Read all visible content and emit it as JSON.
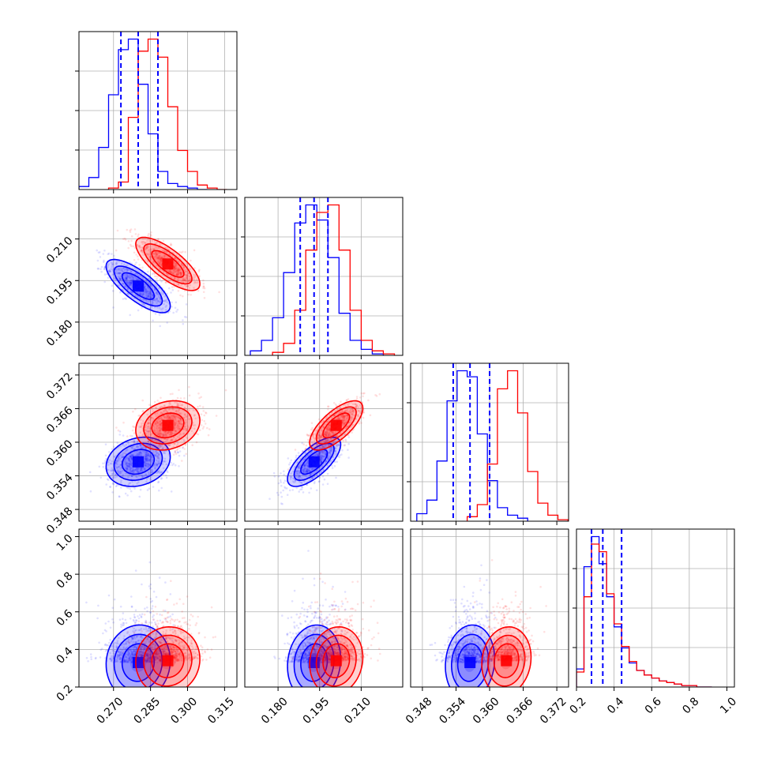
{
  "colors": {
    "blue": "#0000ff",
    "red": "#ff0000",
    "grid": "#b0b0b0"
  },
  "chart_data": {
    "type": "corner",
    "grid": true,
    "quantile_lines_series": "blue",
    "params": [
      {
        "range": [
          0.256,
          0.32
        ],
        "ticks": [
          "0.270",
          "0.285",
          "0.300",
          "0.315"
        ],
        "tick_values": [
          0.27,
          0.285,
          0.3,
          0.315
        ]
      },
      {
        "range": [
          0.168,
          0.225
        ],
        "ticks": [
          "0.180",
          "0.195",
          "0.210"
        ],
        "tick_values": [
          0.18,
          0.195,
          0.21
        ]
      },
      {
        "range": [
          0.3459,
          0.3741
        ],
        "ticks": [
          "0.348",
          "0.354",
          "0.360",
          "0.366",
          "0.372"
        ],
        "tick_values": [
          0.348,
          0.354,
          0.36,
          0.366,
          0.372
        ]
      },
      {
        "range": [
          0.2,
          1.04
        ],
        "ticks": [
          "0.2",
          "0.4",
          "0.6",
          "0.8",
          "1.0"
        ],
        "tick_values": [
          0.2,
          0.4,
          0.6,
          0.8,
          1.0
        ]
      }
    ],
    "series": [
      {
        "color": "blue",
        "mean": [
          0.28,
          0.193,
          0.3565,
          0.33
        ],
        "std": [
          0.0065,
          0.0048,
          0.0022,
          0.1
        ],
        "quantiles": [
          [
            0.273,
            0.28,
            0.288
          ],
          [
            0.188,
            0.193,
            0.198
          ],
          [
            0.3535,
            0.3565,
            0.36
          ],
          [
            0.28,
            0.34,
            0.44
          ]
        ],
        "corr": [
          [
            1,
            -0.75,
            0.2,
            0.05
          ],
          [
            -0.75,
            1,
            0.7,
            0.1
          ],
          [
            0.2,
            0.7,
            1,
            0.1
          ],
          [
            0.05,
            0.1,
            0.1,
            1
          ]
        ],
        "hist_bins": [
          [
            0.256,
            0.26,
            0.264,
            0.268,
            0.272,
            0.276,
            0.28,
            0.284,
            0.288,
            0.292,
            0.296,
            0.3,
            0.304,
            0.308
          ],
          [
            0.17,
            0.174,
            0.178,
            0.182,
            0.186,
            0.19,
            0.194,
            0.198,
            0.202,
            0.206,
            0.21,
            0.214,
            0.218
          ],
          [
            0.347,
            0.3488,
            0.3506,
            0.3524,
            0.3542,
            0.356,
            0.3578,
            0.3596,
            0.3614,
            0.3632,
            0.365,
            0.3668
          ],
          [
            0.2,
            0.24,
            0.28,
            0.32,
            0.36,
            0.4,
            0.44,
            0.48,
            0.52,
            0.56,
            0.6,
            0.64,
            0.68,
            0.72,
            0.76,
            0.8,
            0.84,
            0.88,
            0.92
          ]
        ],
        "hist_counts": [
          [
            0.02,
            0.08,
            0.28,
            0.63,
            0.93,
            1.0,
            0.7,
            0.37,
            0.12,
            0.04,
            0.02,
            0.01,
            0.0
          ],
          [
            0.03,
            0.1,
            0.25,
            0.55,
            0.88,
            1.0,
            0.9,
            0.65,
            0.28,
            0.1,
            0.04,
            0.01
          ],
          [
            0.05,
            0.14,
            0.4,
            0.8,
            1.0,
            0.96,
            0.58,
            0.27,
            0.09,
            0.04,
            0.02
          ],
          [
            0.12,
            0.8,
            1.0,
            0.82,
            0.6,
            0.4,
            0.26,
            0.16,
            0.11,
            0.08,
            0.06,
            0.04,
            0.03,
            0.02,
            0.01,
            0.01,
            0.0,
            0.0
          ]
        ]
      },
      {
        "color": "red",
        "mean": [
          0.292,
          0.201,
          0.363,
          0.34
        ],
        "std": [
          0.0065,
          0.0048,
          0.0022,
          0.09
        ],
        "quantiles": [
          [
            0.285,
            0.292,
            0.299
          ],
          [
            0.196,
            0.201,
            0.206
          ],
          [
            0.3608,
            0.363,
            0.3652
          ],
          [
            0.29,
            0.34,
            0.43
          ]
        ],
        "corr": [
          [
            1,
            -0.75,
            0.2,
            0.05
          ],
          [
            -0.75,
            1,
            0.7,
            0.1
          ],
          [
            0.2,
            0.7,
            1,
            0.1
          ],
          [
            0.05,
            0.1,
            0.1,
            1
          ]
        ],
        "hist_bins": [
          [
            0.268,
            0.272,
            0.276,
            0.28,
            0.284,
            0.288,
            0.292,
            0.296,
            0.3,
            0.304,
            0.308,
            0.312,
            0.316
          ],
          [
            0.178,
            0.182,
            0.186,
            0.19,
            0.194,
            0.198,
            0.202,
            0.206,
            0.21,
            0.214,
            0.218,
            0.222
          ],
          [
            0.356,
            0.3578,
            0.3596,
            0.3614,
            0.3632,
            0.365,
            0.3668,
            0.3686,
            0.3704,
            0.3722,
            0.374
          ],
          [
            0.2,
            0.24,
            0.28,
            0.32,
            0.36,
            0.4,
            0.44,
            0.48,
            0.52,
            0.56,
            0.6,
            0.64,
            0.68,
            0.72,
            0.76,
            0.8,
            0.84,
            0.88,
            0.92
          ]
        ],
        "hist_counts": [
          [
            0.01,
            0.05,
            0.48,
            0.92,
            1.0,
            0.88,
            0.55,
            0.26,
            0.12,
            0.03,
            0.01,
            0.0
          ],
          [
            0.02,
            0.08,
            0.3,
            0.7,
            0.95,
            1.0,
            0.7,
            0.3,
            0.1,
            0.03,
            0.01
          ],
          [
            0.03,
            0.11,
            0.38,
            0.88,
            1.0,
            0.72,
            0.33,
            0.12,
            0.04,
            0.01
          ],
          [
            0.1,
            0.6,
            0.95,
            0.9,
            0.62,
            0.42,
            0.27,
            0.17,
            0.11,
            0.08,
            0.06,
            0.04,
            0.03,
            0.02,
            0.01,
            0.01,
            0.0,
            0.0
          ]
        ]
      }
    ]
  }
}
